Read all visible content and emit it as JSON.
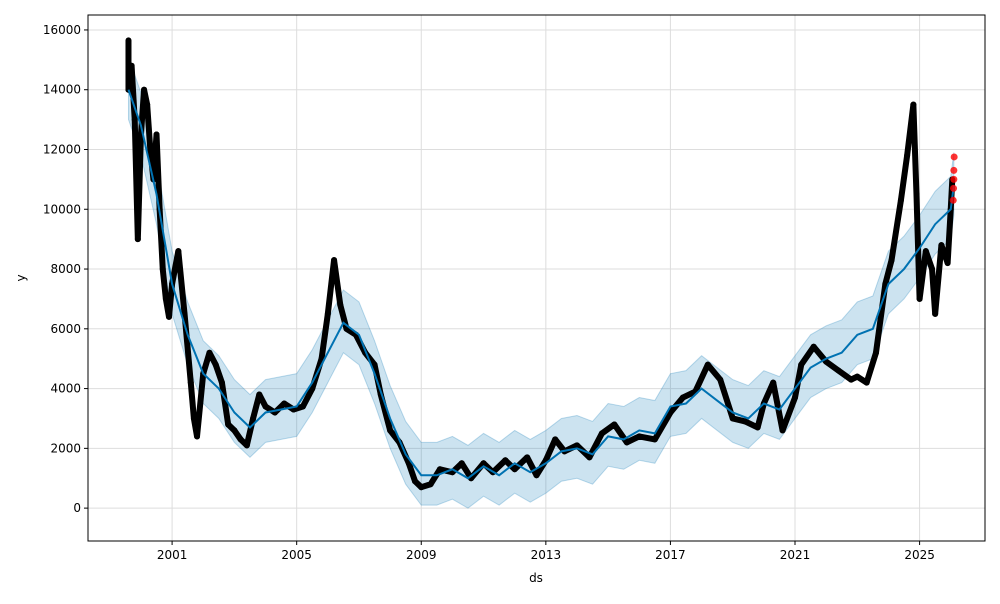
{
  "chart_data": {
    "type": "line",
    "title": "",
    "xlabel": "ds",
    "ylabel": "y",
    "xlim": [
      1998.3,
      2027.1
    ],
    "ylim": [
      -1100,
      16500
    ],
    "x_ticks": [
      2001,
      2005,
      2009,
      2013,
      2017,
      2021,
      2025
    ],
    "x_tick_labels": [
      "2001",
      "2005",
      "2009",
      "2013",
      "2017",
      "2021",
      "2025"
    ],
    "y_ticks": [
      0,
      2000,
      4000,
      6000,
      8000,
      10000,
      12000,
      14000,
      16000
    ],
    "y_tick_labels": [
      "0",
      "2000",
      "4000",
      "6000",
      "8000",
      "10000",
      "12000",
      "14000",
      "16000"
    ],
    "grid": true,
    "colors": {
      "observed": "#000000",
      "forecast": "#0072B2",
      "interval": "#0072B2",
      "future_observed": "#ff0000"
    },
    "forecast": [
      [
        1999.6,
        14000
      ],
      [
        2000,
        12800
      ],
      [
        2000.5,
        10500
      ],
      [
        2001,
        7500
      ],
      [
        2001.5,
        5800
      ],
      [
        2002,
        4500
      ],
      [
        2002.5,
        4000
      ],
      [
        2003,
        3200
      ],
      [
        2003.5,
        2700
      ],
      [
        2004,
        3200
      ],
      [
        2004.5,
        3300
      ],
      [
        2005,
        3400
      ],
      [
        2005.5,
        4200
      ],
      [
        2006,
        5200
      ],
      [
        2006.5,
        6200
      ],
      [
        2007,
        5800
      ],
      [
        2007.5,
        4500
      ],
      [
        2008,
        3000
      ],
      [
        2008.5,
        1800
      ],
      [
        2009,
        1100
      ],
      [
        2009.5,
        1100
      ],
      [
        2010,
        1300
      ],
      [
        2010.5,
        1000
      ],
      [
        2011,
        1400
      ],
      [
        2011.5,
        1100
      ],
      [
        2012,
        1500
      ],
      [
        2012.5,
        1200
      ],
      [
        2013,
        1500
      ],
      [
        2013.5,
        1900
      ],
      [
        2014,
        2000
      ],
      [
        2014.5,
        1800
      ],
      [
        2015,
        2400
      ],
      [
        2015.5,
        2300
      ],
      [
        2016,
        2600
      ],
      [
        2016.5,
        2500
      ],
      [
        2017,
        3400
      ],
      [
        2017.5,
        3500
      ],
      [
        2018,
        4000
      ],
      [
        2018.5,
        3600
      ],
      [
        2019,
        3200
      ],
      [
        2019.5,
        3000
      ],
      [
        2020,
        3500
      ],
      [
        2020.5,
        3300
      ],
      [
        2021,
        4000
      ],
      [
        2021.5,
        4700
      ],
      [
        2022,
        5000
      ],
      [
        2022.5,
        5200
      ],
      [
        2023,
        5800
      ],
      [
        2023.5,
        6000
      ],
      [
        2024,
        7500
      ],
      [
        2024.5,
        8000
      ],
      [
        2025,
        8700
      ],
      [
        2025.5,
        9500
      ],
      [
        2026,
        10000
      ],
      [
        2026.1,
        10800
      ]
    ],
    "interval_upper_offset": 1100,
    "interval_lower_offset": 1000,
    "observed": [
      [
        1999.6,
        15650
      ],
      [
        1999.6,
        14000
      ],
      [
        1999.7,
        14800
      ],
      [
        1999.8,
        13000
      ],
      [
        1999.9,
        9000
      ],
      [
        2000,
        12500
      ],
      [
        2000.1,
        14000
      ],
      [
        2000.2,
        13500
      ],
      [
        2000.3,
        12000
      ],
      [
        2000.4,
        11000
      ],
      [
        2000.5,
        12500
      ],
      [
        2000.6,
        10000
      ],
      [
        2000.7,
        8000
      ],
      [
        2000.8,
        7000
      ],
      [
        2000.9,
        6400
      ],
      [
        2001,
        7500
      ],
      [
        2001.2,
        8600
      ],
      [
        2001.4,
        6500
      ],
      [
        2001.6,
        4200
      ],
      [
        2001.7,
        3000
      ],
      [
        2001.8,
        2400
      ],
      [
        2002,
        4500
      ],
      [
        2002.2,
        5200
      ],
      [
        2002.4,
        4800
      ],
      [
        2002.6,
        4200
      ],
      [
        2002.8,
        2800
      ],
      [
        2003,
        2600
      ],
      [
        2003.2,
        2300
      ],
      [
        2003.4,
        2100
      ],
      [
        2003.6,
        3000
      ],
      [
        2003.8,
        3800
      ],
      [
        2004,
        3400
      ],
      [
        2004.3,
        3200
      ],
      [
        2004.6,
        3500
      ],
      [
        2004.9,
        3300
      ],
      [
        2005.2,
        3400
      ],
      [
        2005.5,
        4000
      ],
      [
        2005.8,
        5000
      ],
      [
        2006,
        6500
      ],
      [
        2006.2,
        8300
      ],
      [
        2006.4,
        6800
      ],
      [
        2006.6,
        6000
      ],
      [
        2006.9,
        5800
      ],
      [
        2007.2,
        5200
      ],
      [
        2007.5,
        4800
      ],
      [
        2007.7,
        3800
      ],
      [
        2008,
        2600
      ],
      [
        2008.3,
        2200
      ],
      [
        2008.6,
        1500
      ],
      [
        2008.8,
        900
      ],
      [
        2009,
        700
      ],
      [
        2009.3,
        800
      ],
      [
        2009.6,
        1300
      ],
      [
        2010,
        1200
      ],
      [
        2010.3,
        1500
      ],
      [
        2010.6,
        1000
      ],
      [
        2011,
        1500
      ],
      [
        2011.3,
        1200
      ],
      [
        2011.7,
        1600
      ],
      [
        2012,
        1300
      ],
      [
        2012.4,
        1700
      ],
      [
        2012.7,
        1100
      ],
      [
        2013,
        1600
      ],
      [
        2013.3,
        2300
      ],
      [
        2013.6,
        1900
      ],
      [
        2014,
        2100
      ],
      [
        2014.4,
        1700
      ],
      [
        2014.8,
        2500
      ],
      [
        2015.2,
        2800
      ],
      [
        2015.6,
        2200
      ],
      [
        2016,
        2400
      ],
      [
        2016.5,
        2300
      ],
      [
        2017,
        3200
      ],
      [
        2017.4,
        3700
      ],
      [
        2017.8,
        3900
      ],
      [
        2018.2,
        4800
      ],
      [
        2018.6,
        4300
      ],
      [
        2019,
        3000
      ],
      [
        2019.4,
        2900
      ],
      [
        2019.8,
        2700
      ],
      [
        2020,
        3500
      ],
      [
        2020.3,
        4200
      ],
      [
        2020.6,
        2600
      ],
      [
        2021,
        3700
      ],
      [
        2021.2,
        4800
      ],
      [
        2021.6,
        5400
      ],
      [
        2022,
        4900
      ],
      [
        2022.4,
        4600
      ],
      [
        2022.8,
        4300
      ],
      [
        2023,
        4400
      ],
      [
        2023.3,
        4200
      ],
      [
        2023.6,
        5200
      ],
      [
        2023.9,
        7500
      ],
      [
        2024.1,
        8300
      ],
      [
        2024.4,
        10300
      ],
      [
        2024.6,
        11800
      ],
      [
        2024.8,
        13500
      ],
      [
        2024.9,
        10500
      ],
      [
        2025,
        7000
      ],
      [
        2025.2,
        8600
      ],
      [
        2025.4,
        8000
      ],
      [
        2025.5,
        6500
      ],
      [
        2025.7,
        8800
      ],
      [
        2025.9,
        8200
      ],
      [
        2026,
        10000
      ],
      [
        2026.05,
        11000
      ]
    ],
    "future_observed": [
      [
        2026.08,
        10300
      ],
      [
        2026.09,
        10700
      ],
      [
        2026.1,
        11000
      ],
      [
        2026.1,
        11300
      ],
      [
        2026.11,
        11750
      ]
    ]
  }
}
